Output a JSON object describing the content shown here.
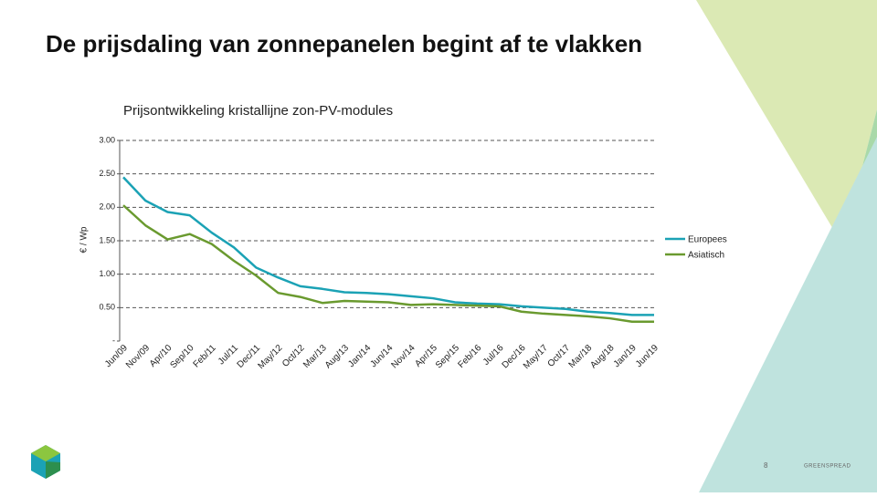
{
  "title": "De prijsdaling van zonnepanelen begint af te vlakken",
  "chart_data": {
    "type": "line",
    "title": "Prijsontwikkeling kristallijne zon-PV-modules",
    "y_label": "€ / Wp",
    "categories": [
      "Jun/09",
      "Nov/09",
      "Apr/10",
      "Sep/10",
      "Feb/11",
      "Jul/11",
      "Dec/11",
      "May/12",
      "Oct/12",
      "Mar/13",
      "Aug/13",
      "Jan/14",
      "Jun/14",
      "Nov/14",
      "Apr/15",
      "Sep/15",
      "Feb/16",
      "Jul/16",
      "Dec/16",
      "May/17",
      "Oct/17",
      "Mar/18",
      "Aug/18",
      "Jan/19",
      "Jun/19"
    ],
    "series": [
      {
        "name": "Europees",
        "color": "#1ba2b5",
        "values": [
          2.45,
          2.1,
          1.93,
          1.88,
          1.62,
          1.4,
          1.1,
          0.95,
          0.82,
          0.78,
          0.73,
          0.72,
          0.7,
          0.67,
          0.64,
          0.58,
          0.56,
          0.55,
          0.52,
          0.5,
          0.48,
          0.44,
          0.42,
          0.39,
          0.39
        ]
      },
      {
        "name": "Asiatisch",
        "color": "#6a9a2f",
        "values": [
          2.03,
          1.73,
          1.52,
          1.6,
          1.45,
          1.2,
          0.98,
          0.72,
          0.66,
          0.57,
          0.6,
          0.59,
          0.58,
          0.54,
          0.55,
          0.54,
          0.53,
          0.52,
          0.44,
          0.41,
          0.39,
          0.37,
          0.34,
          0.29,
          0.29
        ]
      }
    ],
    "ylim": [
      0,
      3
    ],
    "yticks": [
      {
        "value": 0,
        "label": "-"
      },
      {
        "value": 0.5,
        "label": "0.50"
      },
      {
        "value": 1,
        "label": "1.00"
      },
      {
        "value": 1.5,
        "label": "1.50"
      },
      {
        "value": 2,
        "label": "2.00"
      },
      {
        "value": 2.5,
        "label": "2.50"
      },
      {
        "value": 3,
        "label": "3.00"
      }
    ],
    "grid": true,
    "legend": "right"
  },
  "footer": {
    "page": "8",
    "brand": "GREENSPREAD"
  }
}
